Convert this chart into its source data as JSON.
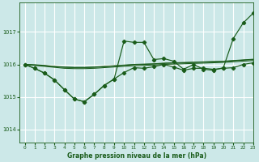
{
  "title": "Graphe pression niveau de la mer (hPa)",
  "bg_color": "#cce8e8",
  "grid_color": "#ffffff",
  "line_color": "#1a5c1a",
  "xlim": [
    -0.5,
    23
  ],
  "ylim": [
    1013.6,
    1017.9
  ],
  "yticks": [
    1014,
    1015,
    1016,
    1017
  ],
  "xticks": [
    0,
    1,
    2,
    3,
    4,
    5,
    6,
    7,
    8,
    9,
    10,
    11,
    12,
    13,
    14,
    15,
    16,
    17,
    18,
    19,
    20,
    21,
    22,
    23
  ],
  "smooth_line1": [
    1016.0,
    1015.97,
    1015.94,
    1015.91,
    1015.88,
    1015.87,
    1015.87,
    1015.88,
    1015.9,
    1015.92,
    1015.94,
    1015.96,
    1015.97,
    1015.98,
    1016.0,
    1016.01,
    1016.02,
    1016.03,
    1016.04,
    1016.05,
    1016.06,
    1016.08,
    1016.1,
    1016.12
  ],
  "smooth_line2": [
    1016.0,
    1015.98,
    1015.96,
    1015.93,
    1015.91,
    1015.9,
    1015.9,
    1015.91,
    1015.93,
    1015.95,
    1015.97,
    1015.99,
    1016.0,
    1016.01,
    1016.03,
    1016.04,
    1016.05,
    1016.06,
    1016.07,
    1016.08,
    1016.09,
    1016.11,
    1016.13,
    1016.15
  ],
  "smooth_line3": [
    1016.0,
    1015.99,
    1015.97,
    1015.94,
    1015.92,
    1015.91,
    1015.91,
    1015.92,
    1015.94,
    1015.96,
    1015.98,
    1016.0,
    1016.01,
    1016.02,
    1016.04,
    1016.05,
    1016.06,
    1016.07,
    1016.08,
    1016.09,
    1016.1,
    1016.12,
    1016.14,
    1016.16
  ],
  "low_line_y": [
    1016.0,
    1015.88,
    1015.73,
    1015.52,
    1015.22,
    1014.93,
    1014.85,
    1015.08,
    1015.35,
    1015.55,
    1015.75,
    1015.9,
    1015.88,
    1015.93,
    1016.0,
    1015.92,
    1015.82,
    1015.88,
    1015.88,
    1015.85,
    1015.88,
    1015.9,
    1016.0,
    1016.05
  ],
  "high_line_y": [
    1016.0,
    1015.88,
    1015.73,
    1015.52,
    1015.22,
    1014.93,
    1014.85,
    1015.08,
    1015.35,
    1015.55,
    1016.72,
    1016.68,
    1016.68,
    1016.15,
    1016.18,
    1016.1,
    1015.85,
    1016.0,
    1015.85,
    1015.82,
    1015.9,
    1016.8,
    1017.28,
    1017.58
  ]
}
